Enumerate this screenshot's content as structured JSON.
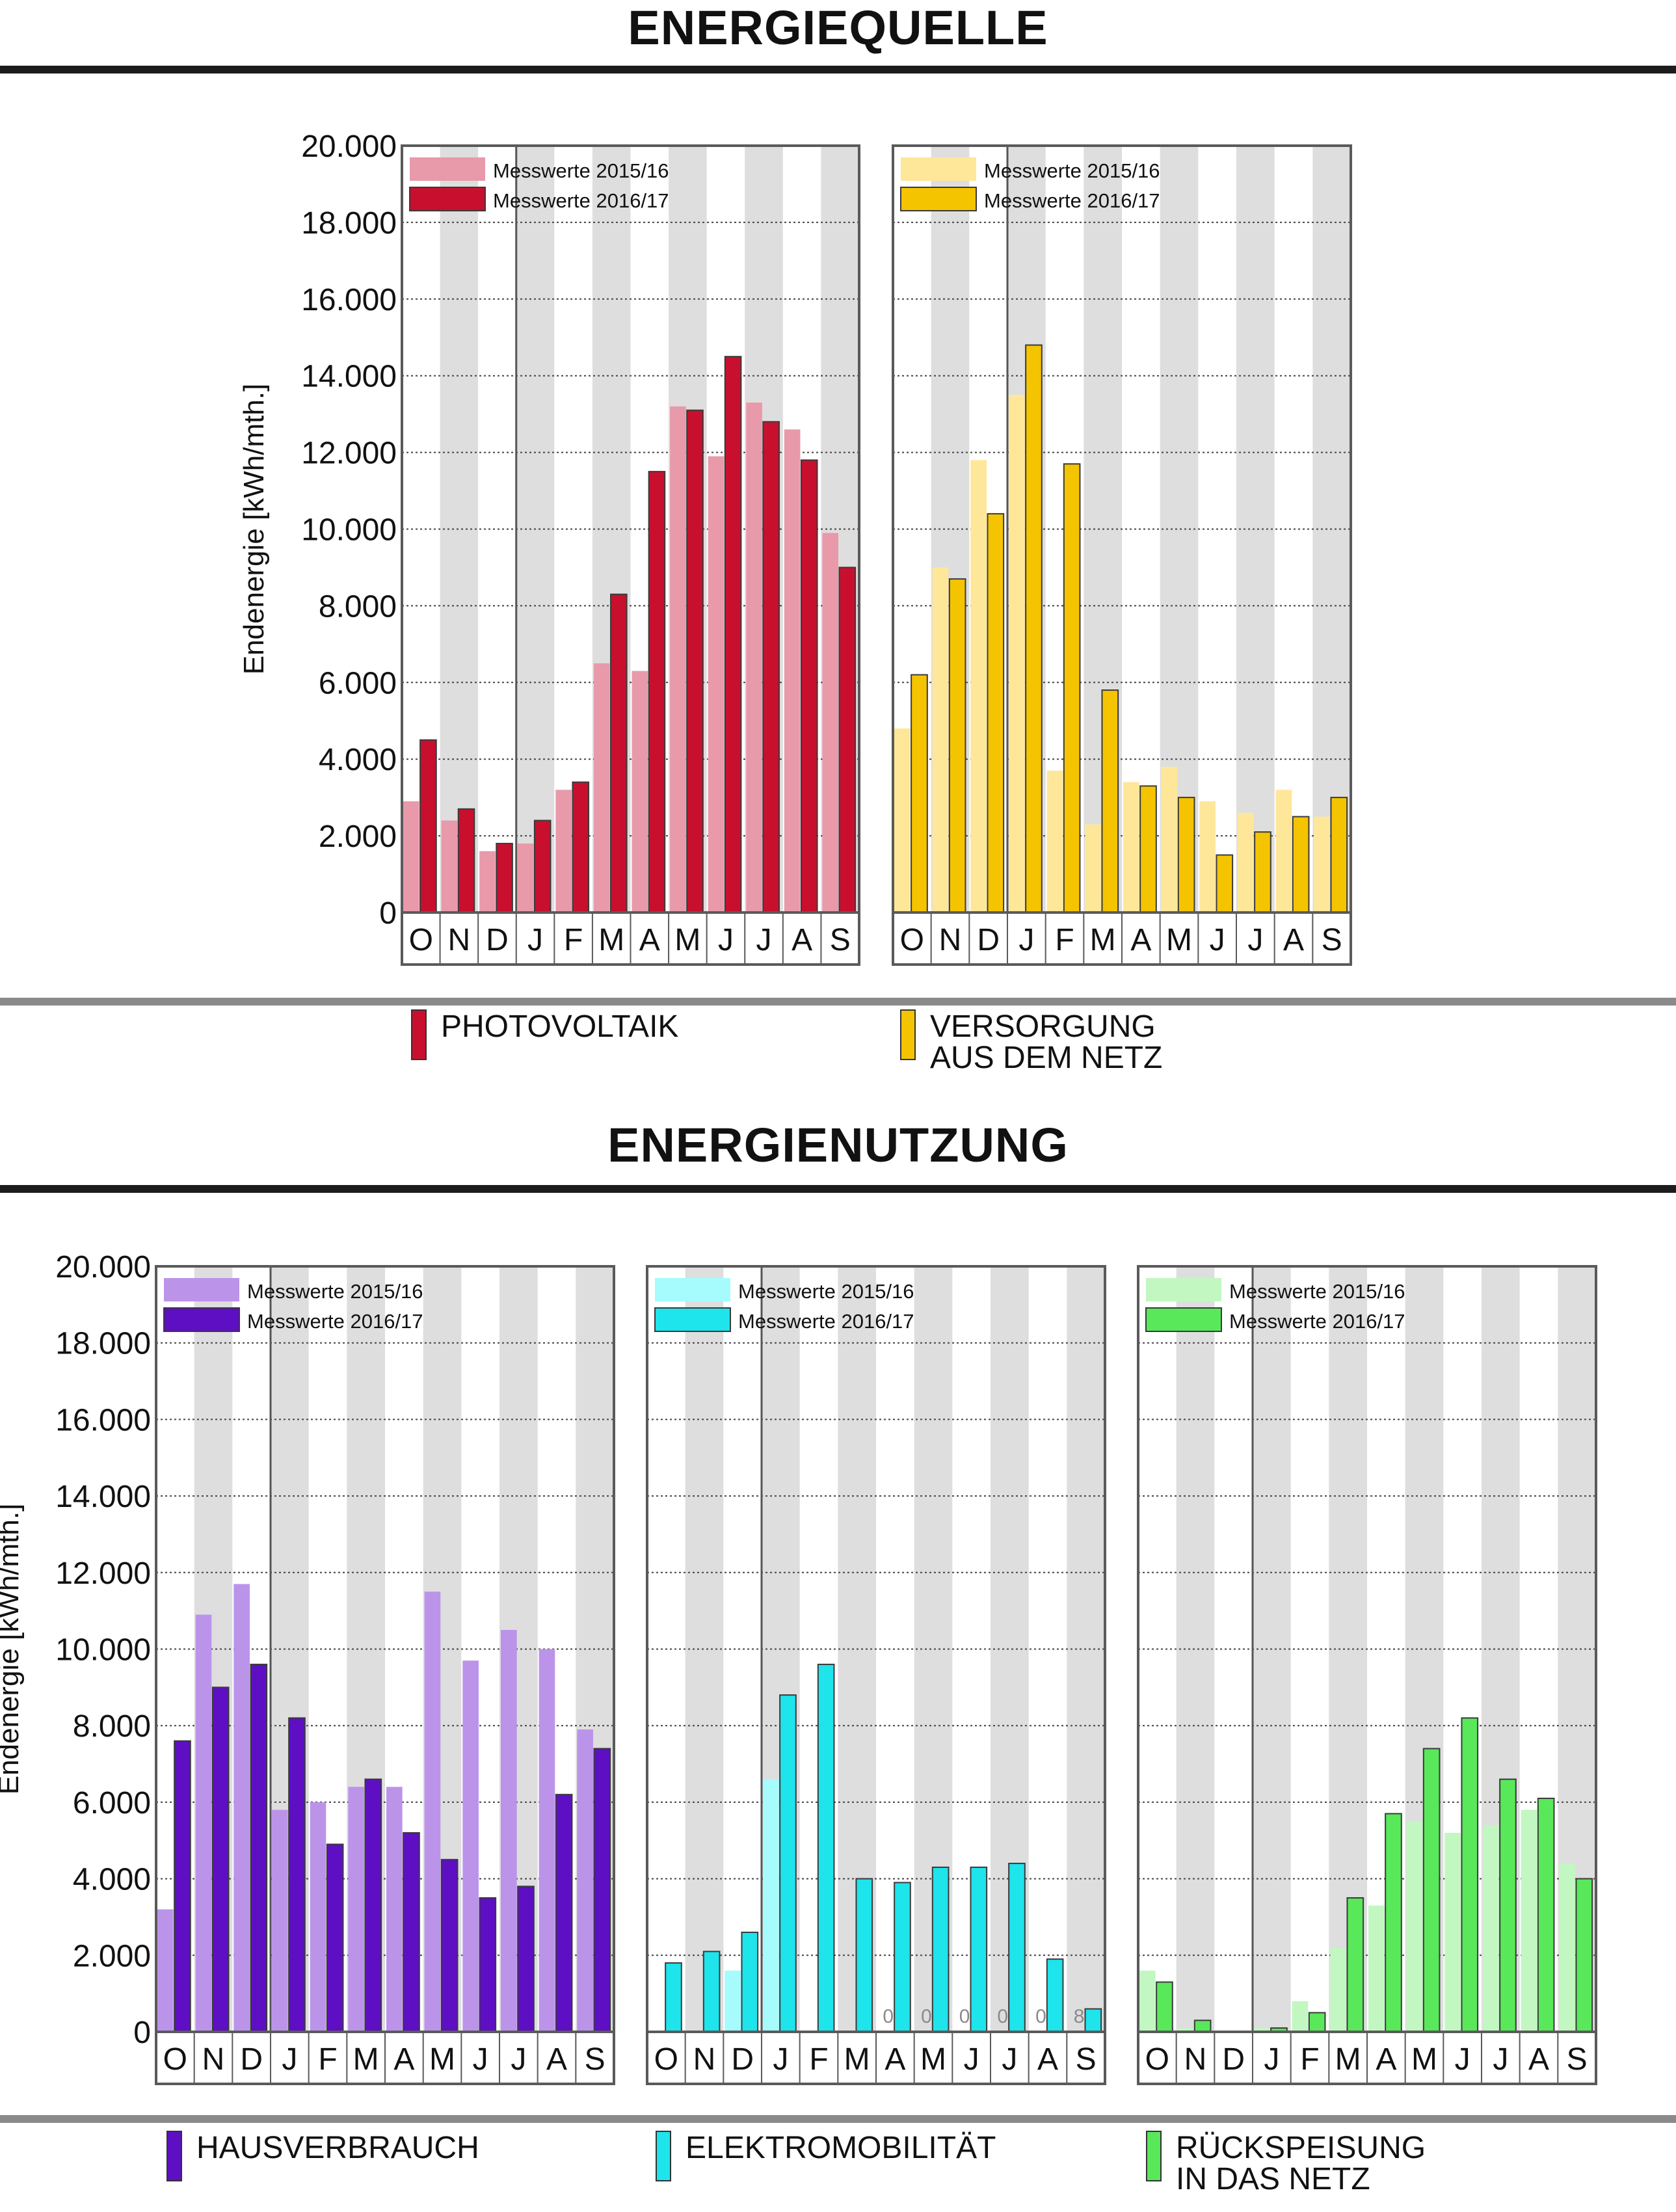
{
  "sections": {
    "source_title": "ENERGIEQUELLE",
    "usage_title": "ENERGIENUTZUNG"
  },
  "legend_source": [
    {
      "label": "PHOTOVOLTAIK",
      "color": "#c8102e"
    },
    {
      "label": "VERSORGUNG",
      "label2": "AUS DEM NETZ",
      "color": "#f5c400"
    }
  ],
  "legend_usage": [
    {
      "label": "HAUSVERBRAUCH",
      "color": "#5e0fc4"
    },
    {
      "label": "ELEKTROMOBILITÄT",
      "color": "#1ee4ec"
    },
    {
      "label": "RÜCKSPEISUNG",
      "label2": "IN DAS NETZ",
      "color": "#58e85a"
    }
  ],
  "chart_data": [
    {
      "type": "bar",
      "name": "Photovoltaik",
      "categories": [
        "O",
        "N",
        "D",
        "J",
        "F",
        "M",
        "A",
        "M",
        "J",
        "J",
        "A",
        "S"
      ],
      "ylabel": "Endenergie [kWh/mth.]",
      "ylim": [
        0,
        20000
      ],
      "yticks": [
        "0",
        "2.000",
        "4.000",
        "6.000",
        "8.000",
        "10.000",
        "12.000",
        "14.000",
        "16.000",
        "18.000",
        "20.000"
      ],
      "light_color": "#e89aaa",
      "dark_color": "#c8102e",
      "series": [
        {
          "name": "Messwerte 2015/16",
          "values": [
            2900,
            2400,
            1600,
            1800,
            3200,
            6500,
            6300,
            13200,
            11900,
            13300,
            12600,
            9900
          ]
        },
        {
          "name": "Messwerte 2016/17",
          "values": [
            4500,
            2700,
            1800,
            2400,
            3400,
            8300,
            11500,
            13100,
            14500,
            12800,
            11800,
            9000
          ]
        }
      ]
    },
    {
      "type": "bar",
      "name": "Versorgung aus dem Netz",
      "categories": [
        "O",
        "N",
        "D",
        "J",
        "F",
        "M",
        "A",
        "M",
        "J",
        "J",
        "A",
        "S"
      ],
      "ylim": [
        0,
        20000
      ],
      "light_color": "#ffe79a",
      "dark_color": "#f5c400",
      "series": [
        {
          "name": "Messwerte 2015/16",
          "values": [
            4800,
            9000,
            11800,
            13500,
            3700,
            2300,
            3400,
            3800,
            2900,
            2600,
            3200,
            2500
          ]
        },
        {
          "name": "Messwerte 2016/17",
          "values": [
            6200,
            8700,
            10400,
            14800,
            11700,
            5800,
            3300,
            3000,
            1500,
            2100,
            2500,
            3000
          ]
        }
      ]
    },
    {
      "type": "bar",
      "name": "Hausverbrauch",
      "categories": [
        "O",
        "N",
        "D",
        "J",
        "F",
        "M",
        "A",
        "M",
        "J",
        "J",
        "A",
        "S"
      ],
      "ylabel": "Endenergie [kWh/mth.]",
      "ylim": [
        0,
        20000
      ],
      "yticks": [
        "0",
        "2.000",
        "4.000",
        "6.000",
        "8.000",
        "10.000",
        "12.000",
        "14.000",
        "16.000",
        "18.000",
        "20.000"
      ],
      "light_color": "#bb94ea",
      "dark_color": "#5e0fc4",
      "series": [
        {
          "name": "Messwerte 2015/16",
          "values": [
            3200,
            10900,
            11700,
            5800,
            6000,
            6400,
            6400,
            11500,
            9700,
            10500,
            10000,
            7900
          ]
        },
        {
          "name": "Messwerte 2016/17",
          "values": [
            7600,
            9000,
            9600,
            8200,
            4900,
            6600,
            5200,
            4500,
            3500,
            3800,
            6200,
            7400
          ]
        }
      ]
    },
    {
      "type": "bar",
      "name": "Elektromobilität",
      "categories": [
        "O",
        "N",
        "D",
        "J",
        "F",
        "M",
        "A",
        "M",
        "J",
        "J",
        "A",
        "S"
      ],
      "ylim": [
        0,
        20000
      ],
      "light_color": "#a6fbfd",
      "dark_color": "#1ee4ec",
      "series": [
        {
          "name": "Messwerte 2015/16",
          "values": [
            0,
            0,
            1600,
            6600,
            0,
            0,
            0,
            0,
            0,
            0,
            0,
            8
          ]
        },
        {
          "name": "Messwerte 2016/17",
          "values": [
            1800,
            2100,
            2600,
            8800,
            9600,
            4000,
            3900,
            4300,
            4300,
            4400,
            1900,
            600
          ]
        }
      ],
      "data_labels": [
        {
          "category_index": 6,
          "text": "0"
        },
        {
          "category_index": 7,
          "text": "0"
        },
        {
          "category_index": 8,
          "text": "0"
        },
        {
          "category_index": 9,
          "text": "0"
        },
        {
          "category_index": 10,
          "text": "0"
        },
        {
          "category_index": 11,
          "text": "8"
        }
      ]
    },
    {
      "type": "bar",
      "name": "Rückspeisung in das Netz",
      "categories": [
        "O",
        "N",
        "D",
        "J",
        "F",
        "M",
        "A",
        "M",
        "J",
        "J",
        "A",
        "S"
      ],
      "ylim": [
        0,
        20000
      ],
      "light_color": "#c2f7c2",
      "dark_color": "#58e85a",
      "series": [
        {
          "name": "Messwerte 2015/16",
          "values": [
            1600,
            100,
            0,
            100,
            800,
            2200,
            3300,
            5500,
            5200,
            5400,
            5800,
            4400
          ]
        },
        {
          "name": "Messwerte 2016/17",
          "values": [
            1300,
            300,
            0,
            100,
            500,
            3500,
            5700,
            7400,
            8200,
            6600,
            6100,
            4000
          ]
        }
      ]
    }
  ]
}
